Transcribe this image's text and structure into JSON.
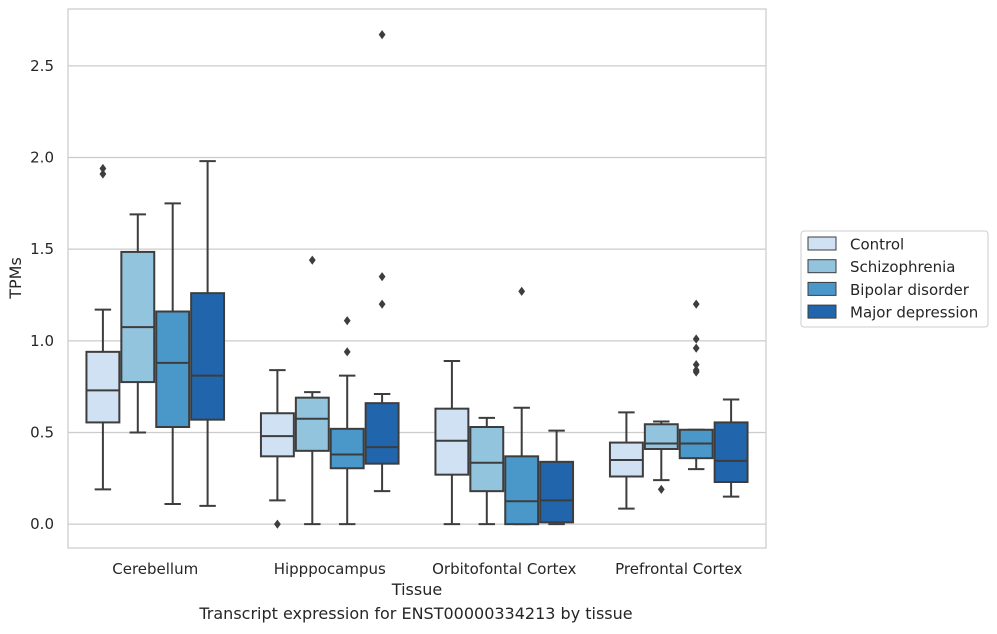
{
  "caption": "Transcript expression for ENST00000334213 by tissue",
  "chart_data": {
    "type": "box",
    "xlabel": "Tissue",
    "ylabel": "TPMs",
    "ylim": [
      -0.13,
      2.81
    ],
    "yticks": [
      "0.0",
      "0.5",
      "1.0",
      "1.5",
      "2.0",
      "2.5"
    ],
    "grid": true,
    "legend_position": "right",
    "categories": [
      "Cerebellum",
      "Hipppocampus",
      "Orbitofontal Cortex",
      "Prefrontal Cortex"
    ],
    "series": [
      {
        "name": "Control",
        "color": "#cfe1f2",
        "boxes": [
          {
            "whisker_low": 0.19,
            "q1": 0.555,
            "median": 0.73,
            "q3": 0.94,
            "whisker_high": 1.17,
            "outliers": [
              1.91,
              1.94
            ]
          },
          {
            "whisker_low": 0.13,
            "q1": 0.37,
            "median": 0.48,
            "q3": 0.605,
            "whisker_high": 0.84,
            "outliers": [
              0.0
            ]
          },
          {
            "whisker_low": 0.0,
            "q1": 0.27,
            "median": 0.455,
            "q3": 0.63,
            "whisker_high": 0.89,
            "outliers": []
          },
          {
            "whisker_low": 0.085,
            "q1": 0.26,
            "median": 0.35,
            "q3": 0.445,
            "whisker_high": 0.61,
            "outliers": []
          }
        ]
      },
      {
        "name": "Schizophrenia",
        "color": "#93c4de",
        "boxes": [
          {
            "whisker_low": 0.5,
            "q1": 0.775,
            "median": 1.075,
            "q3": 1.485,
            "whisker_high": 1.69,
            "outliers": []
          },
          {
            "whisker_low": 0.0,
            "q1": 0.4,
            "median": 0.575,
            "q3": 0.69,
            "whisker_high": 0.72,
            "outliers": [
              1.44
            ]
          },
          {
            "whisker_low": 0.0,
            "q1": 0.18,
            "median": 0.335,
            "q3": 0.53,
            "whisker_high": 0.58,
            "outliers": []
          },
          {
            "whisker_low": 0.24,
            "q1": 0.41,
            "median": 0.44,
            "q3": 0.545,
            "whisker_high": 0.56,
            "outliers": [
              0.19
            ]
          }
        ]
      },
      {
        "name": "Bipolar disorder",
        "color": "#4a98c9",
        "boxes": [
          {
            "whisker_low": 0.11,
            "q1": 0.53,
            "median": 0.88,
            "q3": 1.16,
            "whisker_high": 1.75,
            "outliers": []
          },
          {
            "whisker_low": 0.0,
            "q1": 0.305,
            "median": 0.38,
            "q3": 0.52,
            "whisker_high": 0.81,
            "outliers": [
              0.94,
              1.11
            ]
          },
          {
            "whisker_low": 0.0,
            "q1": 0.0,
            "median": 0.125,
            "q3": 0.37,
            "whisker_high": 0.635,
            "outliers": [
              1.27
            ]
          },
          {
            "whisker_low": 0.3,
            "q1": 0.36,
            "median": 0.44,
            "q3": 0.515,
            "whisker_high": 0.515,
            "outliers": [
              0.83,
              0.84,
              0.87,
              0.96,
              1.01,
              1.2
            ]
          }
        ]
      },
      {
        "name": "Major depression",
        "color": "#2166ac",
        "boxes": [
          {
            "whisker_low": 0.1,
            "q1": 0.57,
            "median": 0.81,
            "q3": 1.26,
            "whisker_high": 1.98,
            "outliers": []
          },
          {
            "whisker_low": 0.18,
            "q1": 0.33,
            "median": 0.42,
            "q3": 0.66,
            "whisker_high": 0.71,
            "outliers": [
              1.2,
              1.35,
              2.67
            ]
          },
          {
            "whisker_low": 0.0,
            "q1": 0.01,
            "median": 0.13,
            "q3": 0.34,
            "whisker_high": 0.51,
            "outliers": []
          },
          {
            "whisker_low": 0.15,
            "q1": 0.23,
            "median": 0.345,
            "q3": 0.555,
            "whisker_high": 0.68,
            "outliers": []
          }
        ]
      }
    ]
  }
}
